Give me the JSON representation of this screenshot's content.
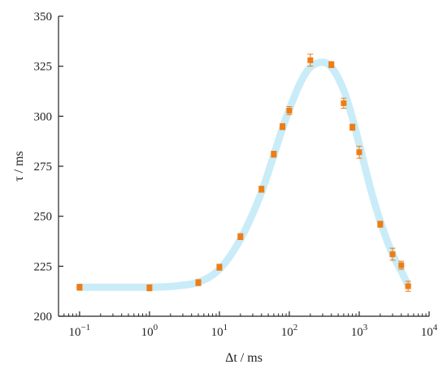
{
  "chart_data": {
    "type": "scatter",
    "xlabel": "Δt / ms",
    "ylabel": "τ / ms",
    "xscale": "log",
    "xlim": [
      0.05,
      10000
    ],
    "ylim": [
      200,
      350
    ],
    "yticks": [
      200,
      225,
      250,
      275,
      300,
      325,
      350
    ],
    "xticks": [
      {
        "value": 0.1,
        "base": "10",
        "exp": "−1"
      },
      {
        "value": 1,
        "base": "10",
        "exp": "0"
      },
      {
        "value": 10,
        "base": "10",
        "exp": "1"
      },
      {
        "value": 100,
        "base": "10",
        "exp": "2"
      },
      {
        "value": 1000,
        "base": "10",
        "exp": "3"
      },
      {
        "value": 10000,
        "base": "10",
        "exp": "4"
      }
    ],
    "grid": false,
    "legend": "none",
    "series": [
      {
        "kind": "points_with_error_bars",
        "color": "#ee7d14",
        "points": [
          {
            "x": 0.1,
            "y": 214.5,
            "err": 1.5
          },
          {
            "x": 1,
            "y": 214.2,
            "err": 1.5
          },
          {
            "x": 5,
            "y": 216.8,
            "err": 1.5
          },
          {
            "x": 10,
            "y": 224.5,
            "err": 1.5
          },
          {
            "x": 20,
            "y": 239.8,
            "err": 1.5
          },
          {
            "x": 40,
            "y": 263.5,
            "err": 1.5
          },
          {
            "x": 60,
            "y": 281.0,
            "err": 1.5
          },
          {
            "x": 80,
            "y": 294.8,
            "err": 1.5
          },
          {
            "x": 100,
            "y": 302.8,
            "err": 2.0
          },
          {
            "x": 200,
            "y": 328.0,
            "err": 3.0
          },
          {
            "x": 400,
            "y": 325.8,
            "err": 1.5
          },
          {
            "x": 600,
            "y": 306.5,
            "err": 2.5
          },
          {
            "x": 800,
            "y": 294.5,
            "err": 1.5
          },
          {
            "x": 1000,
            "y": 282.0,
            "err": 3.0
          },
          {
            "x": 2000,
            "y": 246.0,
            "err": 1.5
          },
          {
            "x": 3000,
            "y": 231.0,
            "err": 3.0
          },
          {
            "x": 4000,
            "y": 225.5,
            "err": 2.0
          },
          {
            "x": 5000,
            "y": 215.0,
            "err": 2.5
          }
        ]
      },
      {
        "kind": "fit_curve",
        "color": "#c9ecf8",
        "points": [
          {
            "x": 0.1,
            "y": 214.5
          },
          {
            "x": 1,
            "y": 214.5
          },
          {
            "x": 3,
            "y": 215.5
          },
          {
            "x": 5,
            "y": 217.0
          },
          {
            "x": 10,
            "y": 223.5
          },
          {
            "x": 20,
            "y": 238.5
          },
          {
            "x": 40,
            "y": 262.0
          },
          {
            "x": 60,
            "y": 280.5
          },
          {
            "x": 80,
            "y": 294.0
          },
          {
            "x": 100,
            "y": 303.5
          },
          {
            "x": 150,
            "y": 318.0
          },
          {
            "x": 200,
            "y": 324.5
          },
          {
            "x": 300,
            "y": 327.0
          },
          {
            "x": 400,
            "y": 324.5
          },
          {
            "x": 600,
            "y": 313.0
          },
          {
            "x": 800,
            "y": 299.0
          },
          {
            "x": 1000,
            "y": 286.0
          },
          {
            "x": 1500,
            "y": 262.0
          },
          {
            "x": 2000,
            "y": 247.5
          },
          {
            "x": 3000,
            "y": 231.0
          },
          {
            "x": 4000,
            "y": 222.5
          },
          {
            "x": 5000,
            "y": 215.5
          }
        ]
      }
    ]
  }
}
